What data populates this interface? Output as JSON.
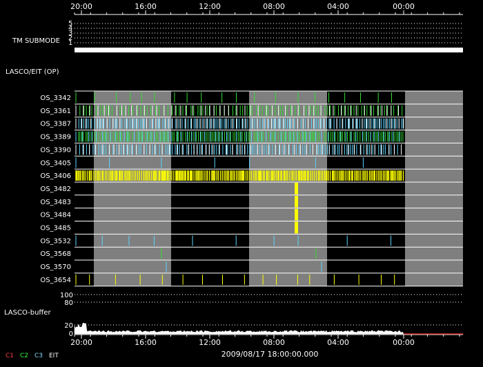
{
  "time_ticks": [
    "20:00",
    "16:00",
    "12:00",
    "08:00",
    "04:00",
    "00:00"
  ],
  "tm_submode": {
    "label": "TM SUBMODE",
    "levels": [
      "5",
      "4",
      "3",
      "2",
      "1"
    ]
  },
  "section_label": "LASCO/EIT (OP)",
  "channels": [
    "OS_3342",
    "OS_3361",
    "OS_3387",
    "OS_3389",
    "OS_3390",
    "OS_3405",
    "OS_3406",
    "OS_3482",
    "OS_3483",
    "OS_3484",
    "OS_3485",
    "OS_3532",
    "OS_3568",
    "OS_3570",
    "OS_3654"
  ],
  "buffer": {
    "label": "LASCO-buffer",
    "levels": [
      "100",
      "80",
      "20",
      "0"
    ]
  },
  "legend": [
    {
      "text": "C1",
      "color": "#ff3b3b"
    },
    {
      "text": "C2",
      "color": "#33ff33"
    },
    {
      "text": "C3",
      "color": "#7fdcff"
    },
    {
      "text": "EIT",
      "color": "#ffffff"
    }
  ],
  "date_label": "2009/08/17 18:00:00.000",
  "colors": {
    "background": "#000000",
    "gray_band": "#7f7f7f",
    "c2": "#33dd33",
    "c3": "#5cd6ff",
    "yellow": "#ffff00",
    "white": "#ffffff"
  }
}
